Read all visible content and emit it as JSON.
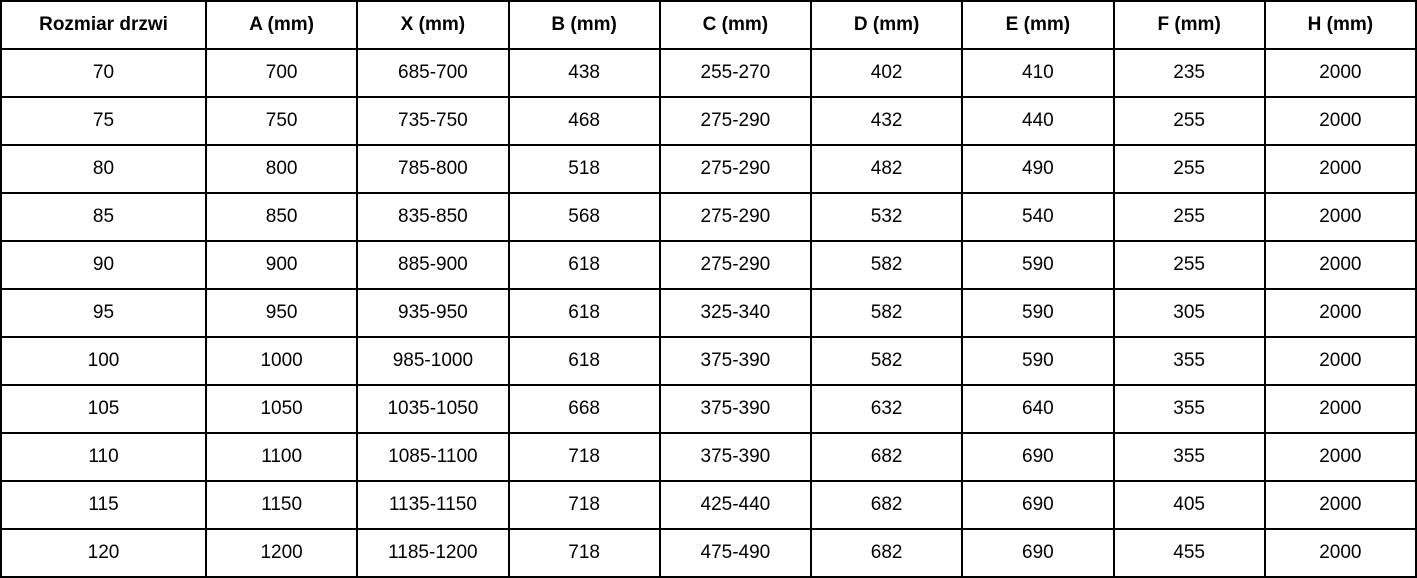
{
  "table": {
    "columns": [
      "Rozmiar drzwi",
      "A (mm)",
      "X (mm)",
      "B (mm)",
      "C (mm)",
      "D (mm)",
      "E (mm)",
      "F (mm)",
      "H (mm)"
    ],
    "rows": [
      [
        "70",
        "700",
        "685-700",
        "438",
        "255-270",
        "402",
        "410",
        "235",
        "2000"
      ],
      [
        "75",
        "750",
        "735-750",
        "468",
        "275-290",
        "432",
        "440",
        "255",
        "2000"
      ],
      [
        "80",
        "800",
        "785-800",
        "518",
        "275-290",
        "482",
        "490",
        "255",
        "2000"
      ],
      [
        "85",
        "850",
        "835-850",
        "568",
        "275-290",
        "532",
        "540",
        "255",
        "2000"
      ],
      [
        "90",
        "900",
        "885-900",
        "618",
        "275-290",
        "582",
        "590",
        "255",
        "2000"
      ],
      [
        "95",
        "950",
        "935-950",
        "618",
        "325-340",
        "582",
        "590",
        "305",
        "2000"
      ],
      [
        "100",
        "1000",
        "985-1000",
        "618",
        "375-390",
        "582",
        "590",
        "355",
        "2000"
      ],
      [
        "105",
        "1050",
        "1035-1050",
        "668",
        "375-390",
        "632",
        "640",
        "355",
        "2000"
      ],
      [
        "110",
        "1100",
        "1085-1100",
        "718",
        "375-390",
        "682",
        "690",
        "355",
        "2000"
      ],
      [
        "115",
        "1150",
        "1135-1150",
        "718",
        "425-440",
        "682",
        "690",
        "405",
        "2000"
      ],
      [
        "120",
        "1200",
        "1185-1200",
        "718",
        "475-490",
        "682",
        "690",
        "455",
        "2000"
      ]
    ],
    "colors": {
      "border": "#000000",
      "background": "#ffffff",
      "text": "#000000"
    }
  }
}
